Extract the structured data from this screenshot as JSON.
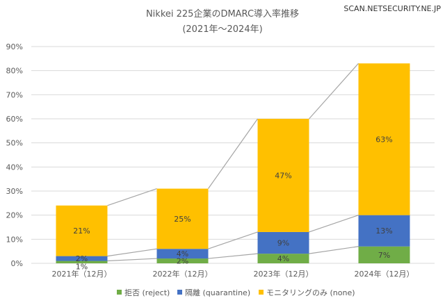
{
  "watermark": "SCAN.NETSECURITY.NE.JP",
  "chart_data": {
    "type": "bar",
    "stacked": true,
    "title": "Nikkei 225企業のDMARC導入率推移",
    "subtitle": "(2021年～2024年)",
    "categories": [
      "2021年（12月）",
      "2022年（12月）",
      "2023年（12月）",
      "2024年（12月）"
    ],
    "series": [
      {
        "name": "拒否 (reject)",
        "color": "#70AD47",
        "values": [
          1,
          2,
          4,
          7
        ]
      },
      {
        "name": "隔離 (quarantine)",
        "color": "#4472C4",
        "values": [
          2,
          4,
          9,
          13
        ]
      },
      {
        "name": "モニタリングのみ (none)",
        "color": "#FFC000",
        "values": [
          21,
          25,
          47,
          63
        ]
      }
    ],
    "ylim": [
      0,
      90
    ],
    "yticks": [
      "0%",
      "10%",
      "20%",
      "30%",
      "40%",
      "50%",
      "60%",
      "70%",
      "80%",
      "90%"
    ],
    "grid": true,
    "series_lines": true,
    "legend": "bottom",
    "value_suffix": "%"
  }
}
